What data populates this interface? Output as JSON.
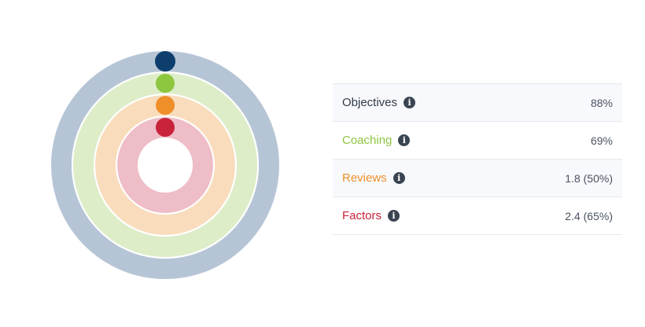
{
  "colors": {
    "objectives": "#0e3e6d",
    "objectives_track": "#b6c5d6",
    "coaching": "#8dc63f",
    "coaching_track": "#ddedc8",
    "reviews": "#ee8f2a",
    "reviews_track": "#f9dcbc",
    "factors": "#c8233a",
    "factors_track": "#eebdc7",
    "objectives_label": "#2f3a46"
  },
  "metrics": [
    {
      "label": "Objectives",
      "value": "88%",
      "info_icon": "info-icon"
    },
    {
      "label": "Coaching",
      "value": "69%",
      "info_icon": "info-icon"
    },
    {
      "label": "Reviews",
      "value": "1.8 (50%)",
      "info_icon": "info-icon"
    },
    {
      "label": "Factors",
      "value": "2.4 (65%)",
      "info_icon": "info-icon"
    }
  ],
  "info_glyph": "i"
}
